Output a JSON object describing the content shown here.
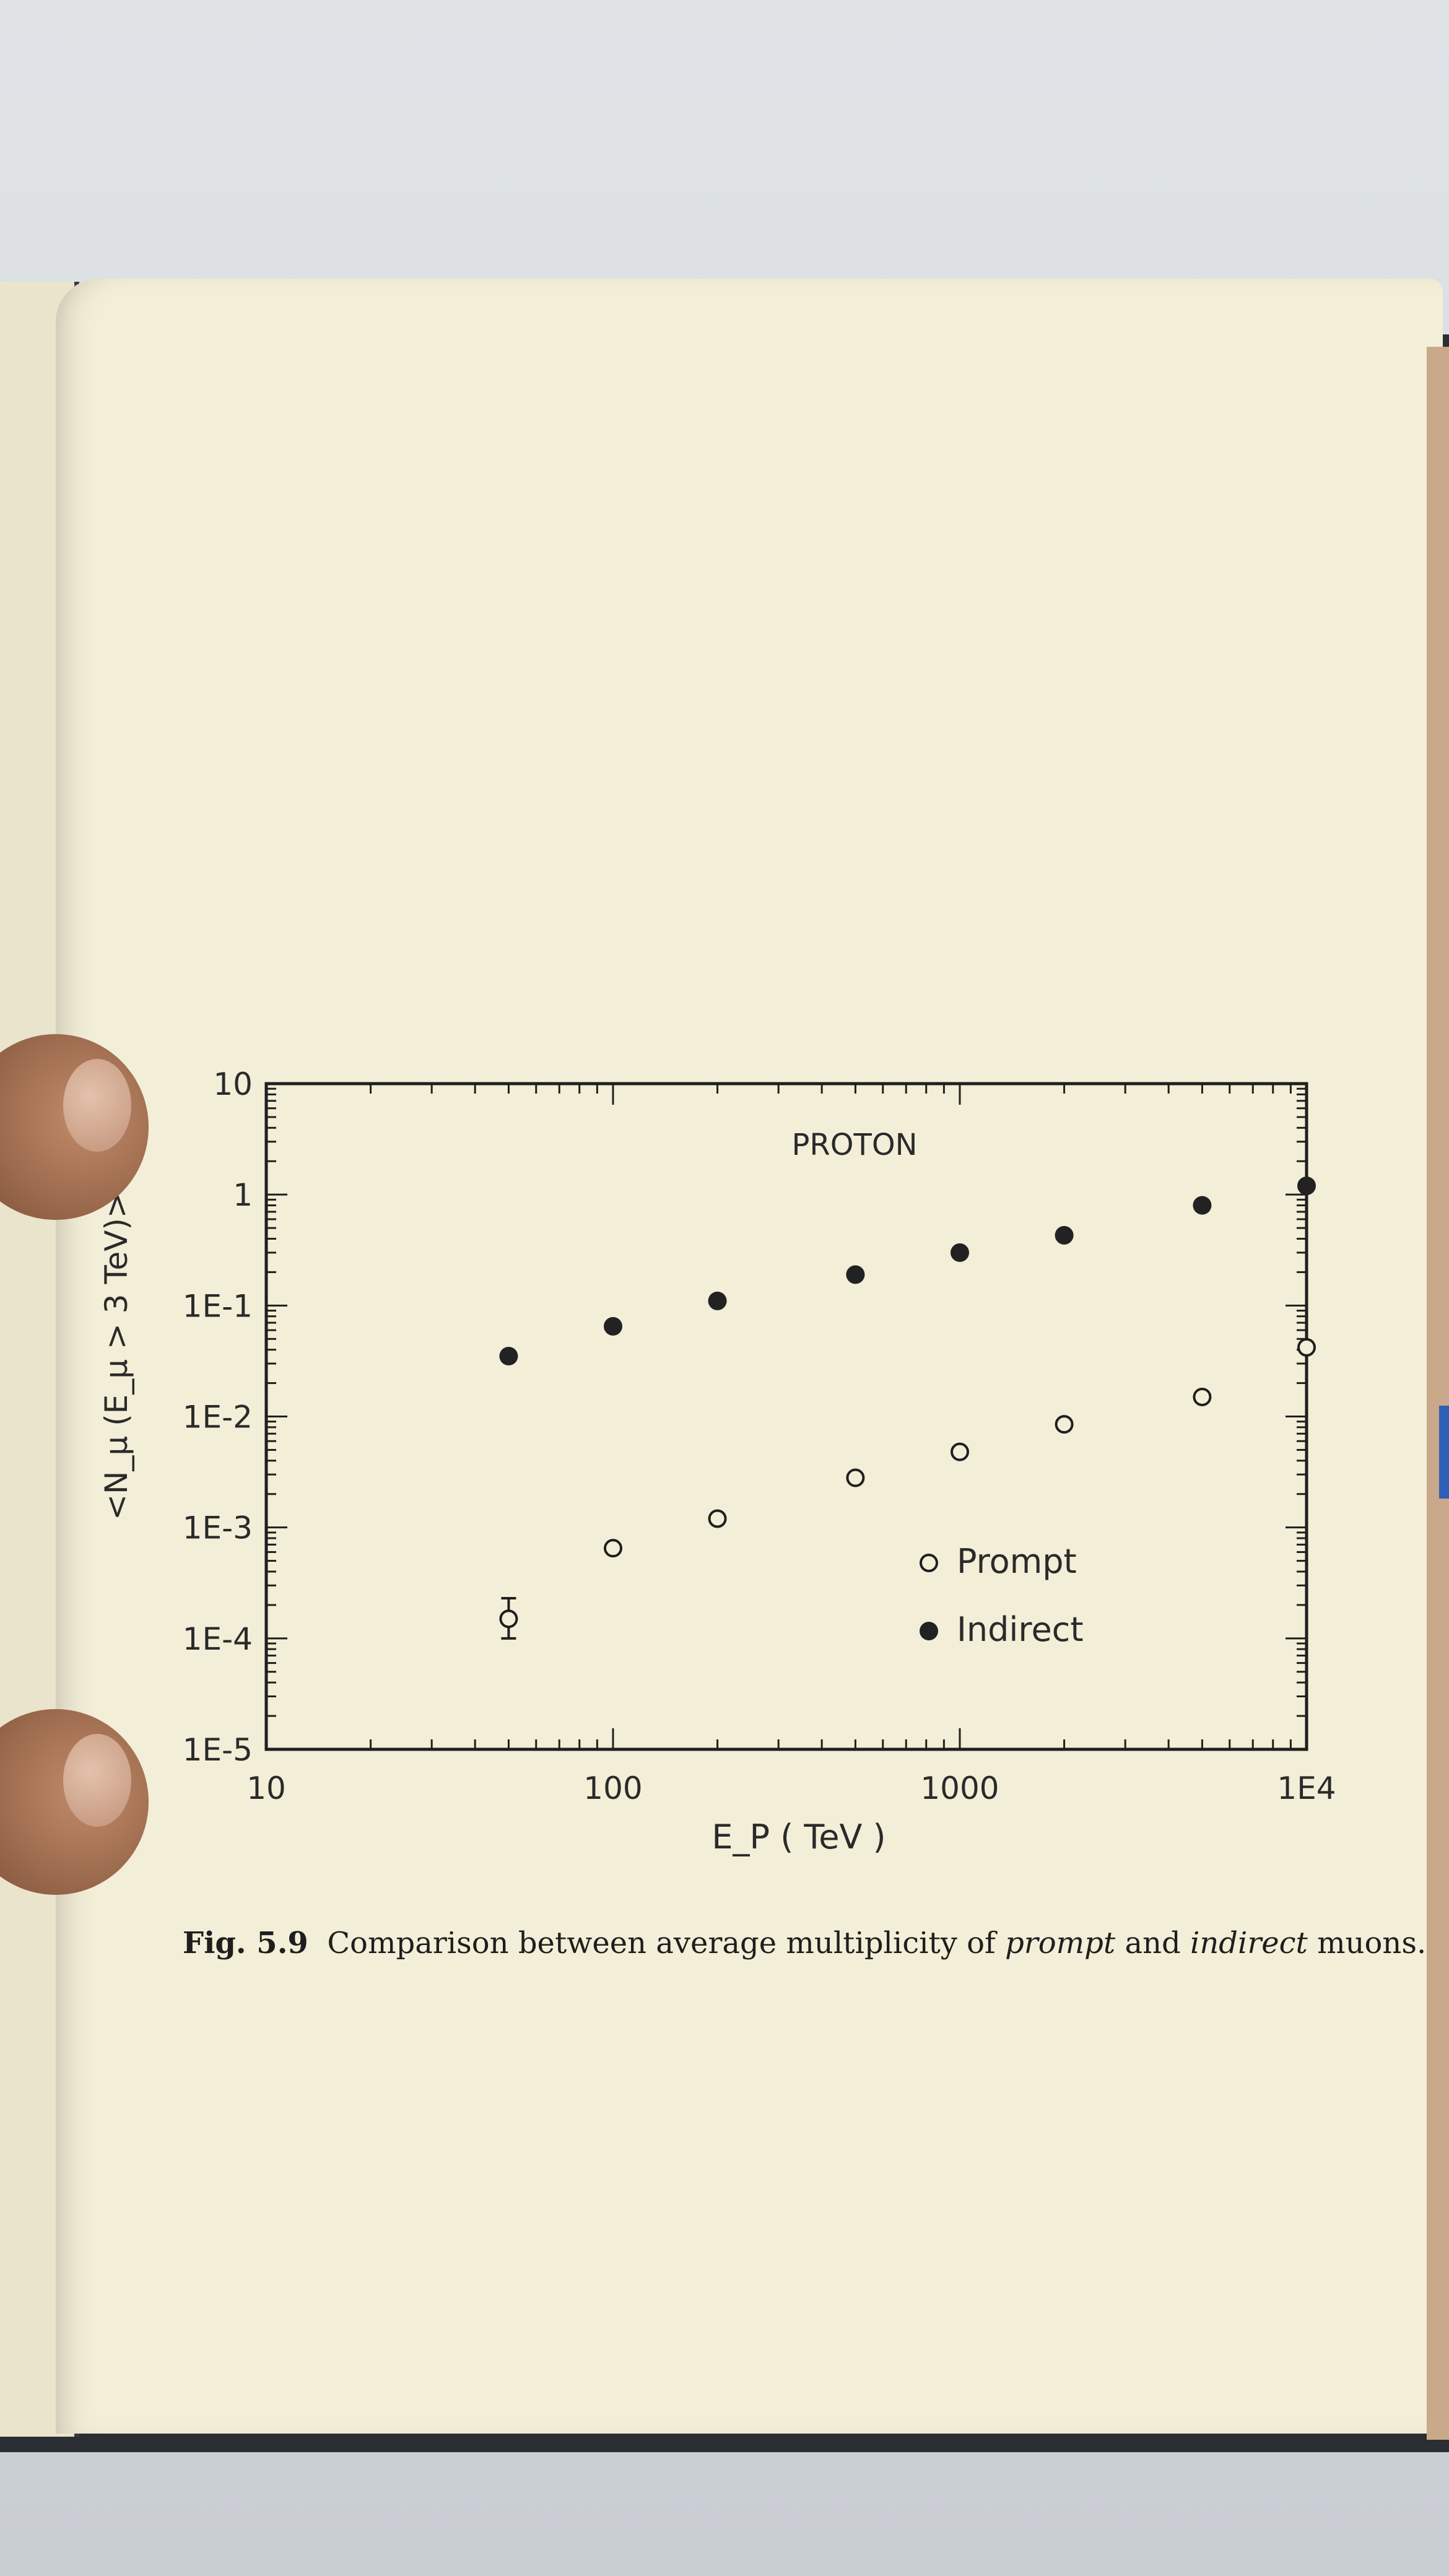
{
  "chart_data": {
    "type": "scatter",
    "title": "PROTON",
    "xlabel": "E_P ( TeV )",
    "ylabel": "<N_μ (E_μ > 3 TeV)>",
    "x_scale": "log",
    "y_scale": "log",
    "xlim": [
      10,
      10000
    ],
    "ylim": [
      1e-05,
      10
    ],
    "x_tick_labels": [
      "10",
      "100",
      "1000",
      "1E4"
    ],
    "x_tick_values": [
      10,
      100,
      1000,
      10000
    ],
    "y_tick_labels": [
      "10",
      "1",
      "1E-1",
      "1E-2",
      "1E-3",
      "1E-4",
      "1E-5"
    ],
    "y_tick_values": [
      10,
      1,
      0.1,
      0.01,
      0.001,
      0.0001,
      1e-05
    ],
    "legend_position": "lower-right",
    "grid": false,
    "series": [
      {
        "name": "Prompt",
        "marker": "open-circle",
        "x": [
          50,
          100,
          200,
          500,
          1000,
          2000,
          5000,
          10000
        ],
        "y": [
          0.00015,
          0.00065,
          0.0012,
          0.0028,
          0.0048,
          0.0085,
          0.015,
          0.042
        ],
        "y_err_low": [
          0.0001,
          null,
          null,
          null,
          null,
          null,
          null,
          null
        ],
        "y_err_high": [
          0.00023,
          null,
          null,
          null,
          null,
          null,
          null,
          null
        ]
      },
      {
        "name": "Indirect",
        "marker": "filled-circle",
        "x": [
          50,
          100,
          200,
          500,
          1000,
          2000,
          5000,
          10000
        ],
        "y": [
          0.035,
          0.065,
          0.11,
          0.19,
          0.3,
          0.43,
          0.8,
          1.2
        ]
      }
    ]
  },
  "caption": {
    "label": "Fig. 5.9",
    "text_before": "Comparison between average multiplicity of ",
    "prompt_word": "prompt",
    "text_middle": " and ",
    "indirect_word": "indirect",
    "text_after": " muons."
  }
}
